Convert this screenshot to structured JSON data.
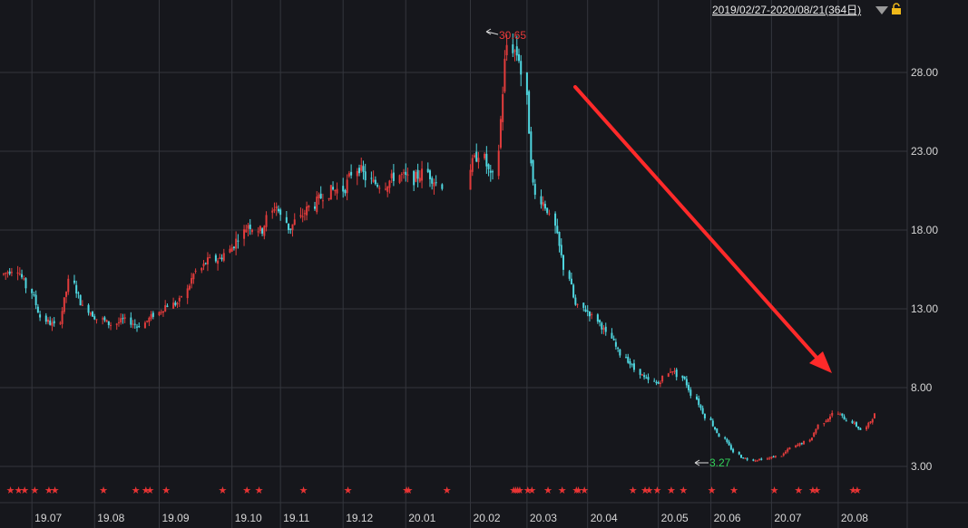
{
  "header": {
    "range_label": "2019/02/27-2020/08/21(364日)",
    "dropdown_icon": "triangle-down-icon",
    "lock_icon": "lock-icon"
  },
  "colors": {
    "background": "#16171c",
    "grid": "#34363d",
    "up": "#e23c3c",
    "down": "#4fd7e0",
    "arrow": "#ff2a2a",
    "high_label": "#e83a3a",
    "low_label": "#33d35a"
  },
  "chart_data": {
    "type": "candlestick",
    "title": "",
    "xlabel": "",
    "ylabel": "",
    "ylim": [
      1.8,
      32.0
    ],
    "y_ticks": [
      "28.00",
      "23.00",
      "18.00",
      "13.00",
      "8.00",
      "3.00"
    ],
    "y_tick_values": [
      28,
      23,
      18,
      13,
      8,
      3
    ],
    "x_ticks": [
      "19.07",
      "19.08",
      "19.09",
      "19.10",
      "19.11",
      "19.12",
      "20.01",
      "20.02",
      "20.03",
      "20.04",
      "20.05",
      "20.06",
      "20.07",
      "20.08"
    ],
    "x_tick_dates": [
      "2019-07-01",
      "2019-08-01",
      "2019-09-02",
      "2019-10-08",
      "2019-11-01",
      "2019-12-02",
      "2020-01-02",
      "2020-02-03",
      "2020-03-02",
      "2020-04-01",
      "2020-05-06",
      "2020-06-01",
      "2020-07-01",
      "2020-08-03"
    ],
    "x_range": [
      "2019-06-17",
      "2020-08-21"
    ],
    "grid": true,
    "high": {
      "value": 30.65,
      "label": "30.65",
      "date": "2020-02-21"
    },
    "low": {
      "value": 3.27,
      "label": "3.27",
      "date": "2020-05-27"
    },
    "series": [
      {
        "trend": "trend-point",
        "close": [
          15.2,
          15.6,
          14.2,
          12.3,
          11.9,
          14.8,
          13.1,
          12.4,
          12.0,
          12.3,
          11.9,
          12.5,
          13.2,
          13.4,
          15.1,
          16.0,
          16.2,
          17.1,
          18.4,
          17.9,
          19.7,
          18.0,
          19.0,
          19.8,
          20.5,
          20.6,
          22.1,
          21.0,
          20.9,
          21.5,
          21.2,
          21.7,
          20.9,
          20.7,
          21.8,
          22.9,
          21.0,
          29.8,
          28.9,
          20.3,
          19.3,
          16.3,
          13.2,
          12.8,
          11.8,
          10.5,
          9.5,
          8.6,
          8.2,
          9.2,
          8.4,
          6.9,
          5.6,
          4.5,
          3.6,
          3.4,
          3.5,
          3.7,
          4.3,
          4.6,
          5.8,
          6.4,
          5.9,
          5.3,
          6.3
        ]
      }
    ],
    "limit_down_stars": [
      "2019-06-20",
      "2019-06-24",
      "2019-06-27",
      "2019-07-02",
      "2019-07-09",
      "2019-07-12",
      "2019-08-05",
      "2019-08-21",
      "2019-08-26",
      "2019-08-28",
      "2019-09-05",
      "2019-10-03",
      "2019-10-15",
      "2019-10-21",
      "2019-11-12",
      "2019-12-04",
      "2020-01-02",
      "2020-01-03",
      "2020-01-22",
      "2020-02-24",
      "2020-02-25",
      "2020-02-26",
      "2020-02-27",
      "2020-03-02",
      "2020-03-04",
      "2020-03-12",
      "2020-03-19",
      "2020-03-26",
      "2020-03-27",
      "2020-03-30",
      "2020-04-23",
      "2020-04-29",
      "2020-05-01",
      "2020-05-05",
      "2020-05-12",
      "2020-05-18",
      "2020-06-01",
      "2020-06-12",
      "2020-07-02",
      "2020-07-14",
      "2020-07-21",
      "2020-07-23",
      "2020-08-10",
      "2020-08-12"
    ]
  }
}
